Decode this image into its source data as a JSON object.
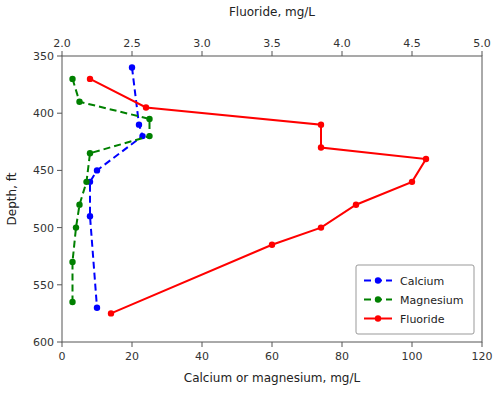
{
  "chart_data": {
    "type": "line",
    "xlabel": "Calcium or magnesium, mg/L",
    "x2label": "Fluoride, mg/L",
    "ylabel": "Depth, ft",
    "xlim": [
      0,
      120
    ],
    "xticks": [
      0,
      20,
      40,
      60,
      80,
      100,
      120
    ],
    "x2lim": [
      2.0,
      5.0
    ],
    "x2ticks": [
      {
        "value": 2.0,
        "label": "2.0"
      },
      {
        "value": 2.5,
        "label": "2.5"
      },
      {
        "value": 3.0,
        "label": "3.0"
      },
      {
        "value": 3.5,
        "label": "3.5"
      },
      {
        "value": 4.0,
        "label": "4.0"
      },
      {
        "value": 4.5,
        "label": "4.5"
      },
      {
        "value": 5.0,
        "label": "5.0"
      }
    ],
    "ylim": [
      600,
      350
    ],
    "yticks": [
      350,
      400,
      450,
      500,
      550,
      600
    ],
    "grid": false,
    "legend": "lower right",
    "series": [
      {
        "name": "Calcium",
        "color": "#0000FF",
        "line_style": "dashed",
        "marker": "circle",
        "x": [
          20,
          22,
          23,
          10,
          8,
          8,
          10
        ],
        "values": [
          360,
          410,
          420,
          450,
          460,
          490,
          570
        ]
      },
      {
        "name": "Magnesium",
        "color": "#008000",
        "line_style": "dashed",
        "marker": "circle",
        "x": [
          3,
          5,
          25,
          25,
          8,
          7,
          5,
          4,
          3,
          3
        ],
        "values": [
          370,
          390,
          405,
          420,
          435,
          460,
          480,
          500,
          530,
          565
        ]
      },
      {
        "name": "Fluoride",
        "color": "#FF0000",
        "line_style": "solid",
        "marker": "circle",
        "axis": "x2",
        "x": [
          2.2,
          2.6,
          3.85,
          3.85,
          4.6,
          4.5,
          4.1,
          3.85,
          3.5,
          2.35
        ],
        "values": [
          370,
          395,
          410,
          430,
          440,
          460,
          480,
          500,
          515,
          575
        ]
      }
    ]
  }
}
